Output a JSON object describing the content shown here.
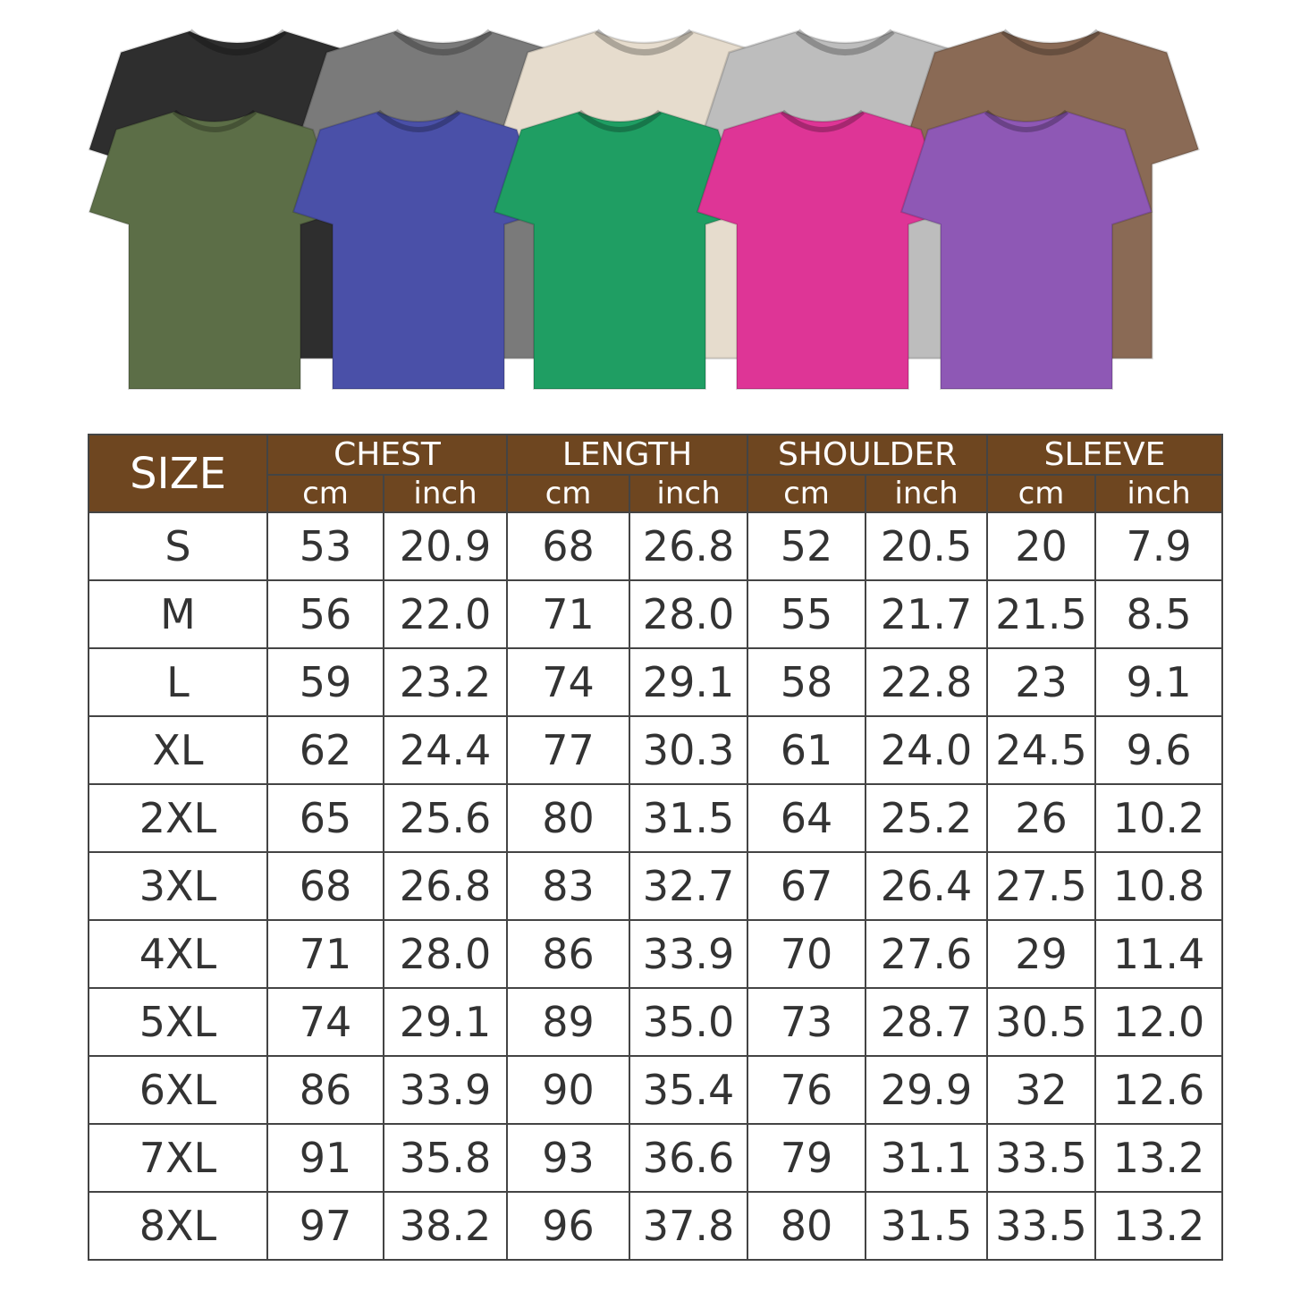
{
  "shirts": {
    "back_row": [
      {
        "color": "#2e2e2e",
        "name": "black"
      },
      {
        "color": "#7a7a7a",
        "name": "gray"
      },
      {
        "color": "#e6dccd",
        "name": "cream"
      },
      {
        "color": "#bdbdbd",
        "name": "light-gray"
      },
      {
        "color": "#8a6a55",
        "name": "brown"
      }
    ],
    "front_row": [
      {
        "color": "#5c6e47",
        "name": "olive"
      },
      {
        "color": "#4a50a8",
        "name": "blue"
      },
      {
        "color": "#1f9e63",
        "name": "green"
      },
      {
        "color": "#de3596",
        "name": "pink"
      },
      {
        "color": "#8e58b5",
        "name": "purple"
      }
    ]
  },
  "table": {
    "header_color": "#6e4620",
    "size_label": "SIZE",
    "groups": [
      "CHEST",
      "LENGTH",
      "SHOULDER",
      "SLEEVE"
    ],
    "units": [
      "cm",
      "inch"
    ],
    "rows": [
      [
        "S",
        "53",
        "20.9",
        "68",
        "26.8",
        "52",
        "20.5",
        "20",
        "7.9"
      ],
      [
        "M",
        "56",
        "22.0",
        "71",
        "28.0",
        "55",
        "21.7",
        "21.5",
        "8.5"
      ],
      [
        "L",
        "59",
        "23.2",
        "74",
        "29.1",
        "58",
        "22.8",
        "23",
        "9.1"
      ],
      [
        "XL",
        "62",
        "24.4",
        "77",
        "30.3",
        "61",
        "24.0",
        "24.5",
        "9.6"
      ],
      [
        "2XL",
        "65",
        "25.6",
        "80",
        "31.5",
        "64",
        "25.2",
        "26",
        "10.2"
      ],
      [
        "3XL",
        "68",
        "26.8",
        "83",
        "32.7",
        "67",
        "26.4",
        "27.5",
        "10.8"
      ],
      [
        "4XL",
        "71",
        "28.0",
        "86",
        "33.9",
        "70",
        "27.6",
        "29",
        "11.4"
      ],
      [
        "5XL",
        "74",
        "29.1",
        "89",
        "35.0",
        "73",
        "28.7",
        "30.5",
        "12.0"
      ],
      [
        "6XL",
        "86",
        "33.9",
        "90",
        "35.4",
        "76",
        "29.9",
        "32",
        "12.6"
      ],
      [
        "7XL",
        "91",
        "35.8",
        "93",
        "36.6",
        "79",
        "31.1",
        "33.5",
        "13.2"
      ],
      [
        "8XL",
        "97",
        "38.2",
        "96",
        "37.8",
        "80",
        "31.5",
        "33.5",
        "13.2"
      ]
    ]
  }
}
